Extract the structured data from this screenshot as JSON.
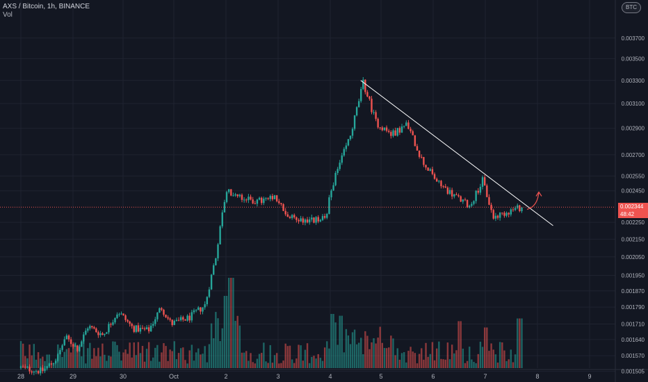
{
  "header": {
    "title": "AXS / Bitcoin, 1h, BINANCE",
    "volume_label": "Vol"
  },
  "currency_badge": "BTC",
  "price_tag": {
    "price": "0.002344",
    "countdown": "48:42"
  },
  "colors": {
    "up": "#26a69a",
    "down": "#ef5350",
    "background": "#131722",
    "trendline": "#ffffff",
    "arrow": "#ef5350"
  },
  "chart_data": {
    "type": "candlestick",
    "title": "AXS / Bitcoin, 1h, BINANCE",
    "y_scale": "log",
    "ylim": [
      0.00149,
      0.0041
    ],
    "y_ticks": [
      "0.001505",
      "0.001570",
      "0.001640",
      "0.001710",
      "0.001790",
      "0.001870",
      "0.001950",
      "0.002050",
      "0.002150",
      "0.002250",
      "0.002450",
      "0.002550",
      "0.002700",
      "0.002900",
      "0.003100",
      "0.003300",
      "0.003500",
      "0.003700"
    ],
    "x_ticks": [
      "28",
      "29",
      "30",
      "Oct",
      "2",
      "3",
      "4",
      "5",
      "6",
      "7",
      "8",
      "9"
    ],
    "current_price": 0.002344,
    "price_path": [
      {
        "day": 0.0,
        "price": 0.00152
      },
      {
        "day": 0.4,
        "price": 0.001505
      },
      {
        "day": 0.7,
        "price": 0.00156
      },
      {
        "day": 0.85,
        "price": 0.00165
      },
      {
        "day": 1.1,
        "price": 0.0016
      },
      {
        "day": 1.3,
        "price": 0.0017
      },
      {
        "day": 1.6,
        "price": 0.00166
      },
      {
        "day": 1.9,
        "price": 0.00177
      },
      {
        "day": 2.2,
        "price": 0.00169
      },
      {
        "day": 2.5,
        "price": 0.00168
      },
      {
        "day": 2.75,
        "price": 0.00179
      },
      {
        "day": 2.95,
        "price": 0.00171
      },
      {
        "day": 3.3,
        "price": 0.00174
      },
      {
        "day": 3.6,
        "price": 0.0018
      },
      {
        "day": 3.8,
        "price": 0.00205
      },
      {
        "day": 4.0,
        "price": 0.00245
      },
      {
        "day": 4.3,
        "price": 0.0024
      },
      {
        "day": 4.6,
        "price": 0.00238
      },
      {
        "day": 4.95,
        "price": 0.0024
      },
      {
        "day": 5.2,
        "price": 0.00228
      },
      {
        "day": 5.6,
        "price": 0.00226
      },
      {
        "day": 5.9,
        "price": 0.00227
      },
      {
        "day": 6.05,
        "price": 0.0025
      },
      {
        "day": 6.4,
        "price": 0.00285
      },
      {
        "day": 6.65,
        "price": 0.00328
      },
      {
        "day": 6.9,
        "price": 0.00295
      },
      {
        "day": 7.2,
        "price": 0.00285
      },
      {
        "day": 7.5,
        "price": 0.00293
      },
      {
        "day": 7.8,
        "price": 0.00265
      },
      {
        "day": 8.1,
        "price": 0.0025
      },
      {
        "day": 8.4,
        "price": 0.00242
      },
      {
        "day": 8.7,
        "price": 0.00235
      },
      {
        "day": 8.95,
        "price": 0.00252
      },
      {
        "day": 9.15,
        "price": 0.00228
      },
      {
        "day": 9.45,
        "price": 0.00232
      },
      {
        "day": 9.7,
        "price": 0.002344
      }
    ],
    "volume_spikes": [
      {
        "day": 4.0,
        "relative": 0.8,
        "direction": "down"
      },
      {
        "day": 4.1,
        "relative": 1.0,
        "direction": "up"
      },
      {
        "day": 6.05,
        "relative": 0.6,
        "direction": "up"
      },
      {
        "day": 6.2,
        "relative": 0.58,
        "direction": "up"
      },
      {
        "day": 8.5,
        "relative": 0.52,
        "direction": "down"
      },
      {
        "day": 9.0,
        "relative": 0.45,
        "direction": "up"
      },
      {
        "day": 9.65,
        "relative": 0.55,
        "direction": "down"
      }
    ],
    "trendline": {
      "from": {
        "day": 6.6,
        "price": 0.0033
      },
      "to": {
        "day": 10.3,
        "price": 0.00223
      }
    }
  }
}
